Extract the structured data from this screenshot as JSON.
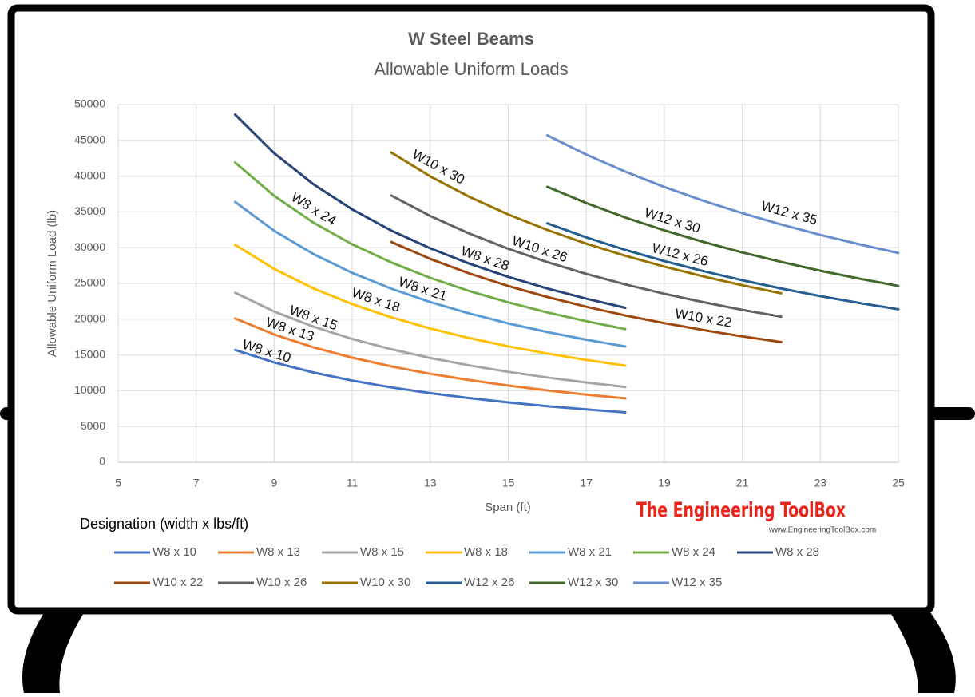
{
  "chart_data": {
    "type": "line",
    "title": "W Steel  Beams",
    "subtitle": "Allowable Uniform Loads",
    "x_label": "Span (ft)",
    "y_label": "Allowable Uniform Load (lb)",
    "legend_title": "Designation (width x lbs/ft)",
    "x": [
      8,
      9,
      10,
      11,
      12,
      13,
      14,
      15,
      16,
      17,
      18,
      19,
      20,
      21,
      22,
      23,
      24,
      25
    ],
    "series": [
      {
        "name": "W8 x 10",
        "color": "#4472c4",
        "values": [
          15700,
          13960,
          12560,
          11420,
          10470,
          9660,
          8970,
          8370,
          7850,
          7390,
          6980,
          null,
          null,
          null,
          null,
          null,
          null,
          null
        ]
      },
      {
        "name": "W8 x 13",
        "color": "#ed7d31",
        "values": [
          20100,
          17870,
          16080,
          14620,
          13400,
          12370,
          11490,
          10720,
          10050,
          9460,
          8930,
          null,
          null,
          null,
          null,
          null,
          null,
          null
        ]
      },
      {
        "name": "W8 x 15",
        "color": "#a5a5a5",
        "values": [
          23700,
          21070,
          18960,
          17240,
          15800,
          14580,
          13540,
          12640,
          11850,
          11150,
          10530,
          null,
          null,
          null,
          null,
          null,
          null,
          null
        ]
      },
      {
        "name": "W8 x 18",
        "color": "#ffc000",
        "values": [
          30400,
          27020,
          24320,
          22110,
          20270,
          18710,
          17370,
          16210,
          15200,
          14310,
          13510,
          null,
          null,
          null,
          null,
          null,
          null,
          null
        ]
      },
      {
        "name": "W8 x 21",
        "color": "#5b9bd5",
        "values": [
          36400,
          32360,
          29120,
          26470,
          24270,
          22400,
          20800,
          19410,
          18200,
          17130,
          16180,
          null,
          null,
          null,
          null,
          null,
          null,
          null
        ]
      },
      {
        "name": "W8 x 24",
        "color": "#70ad47",
        "values": [
          41900,
          37240,
          33520,
          30470,
          27930,
          25780,
          23940,
          22350,
          20950,
          19720,
          18620,
          null,
          null,
          null,
          null,
          null,
          null,
          null
        ]
      },
      {
        "name": "W8 x 28",
        "color": "#264478",
        "values": [
          48600,
          43200,
          38880,
          35350,
          32400,
          29910,
          27770,
          25920,
          24300,
          22870,
          21600,
          null,
          null,
          null,
          null,
          null,
          null,
          null
        ]
      },
      {
        "name": "W10 x 22",
        "color": "#9e480e",
        "values": [
          null,
          null,
          null,
          null,
          30800,
          28430,
          26400,
          24640,
          23100,
          21740,
          20530,
          19450,
          18480,
          17600,
          16800,
          null,
          null,
          null
        ]
      },
      {
        "name": "W10 x 26",
        "color": "#636363",
        "values": [
          null,
          null,
          null,
          null,
          37300,
          34430,
          31970,
          29840,
          27980,
          26330,
          24870,
          23560,
          22380,
          21310,
          20350,
          null,
          null,
          null
        ]
      },
      {
        "name": "W10 x 30",
        "color": "#997300",
        "values": [
          null,
          null,
          null,
          null,
          43300,
          39970,
          37110,
          34640,
          32480,
          30560,
          28870,
          27350,
          25980,
          24740,
          23620,
          null,
          null,
          null
        ]
      },
      {
        "name": "W12 x 26",
        "color": "#255e91",
        "values": [
          null,
          null,
          null,
          null,
          null,
          null,
          null,
          null,
          33400,
          31440,
          29690,
          28130,
          26720,
          25450,
          24290,
          23230,
          22270,
          21380
        ]
      },
      {
        "name": "W12 x 30",
        "color": "#43682b",
        "values": [
          null,
          null,
          null,
          null,
          null,
          null,
          null,
          null,
          38500,
          36240,
          34220,
          32420,
          30800,
          29330,
          28000,
          26780,
          25670,
          24640
        ]
      },
      {
        "name": "W12 x 35",
        "color": "#698ed0",
        "values": [
          null,
          null,
          null,
          null,
          null,
          null,
          null,
          null,
          45700,
          43010,
          40620,
          38480,
          36560,
          34820,
          33240,
          31790,
          30470,
          29250
        ]
      }
    ],
    "xlim": [
      5,
      25
    ],
    "ylim": [
      0,
      50000
    ],
    "xticks": [
      5,
      7,
      9,
      11,
      13,
      15,
      17,
      19,
      21,
      23,
      25
    ],
    "yticks": [
      0,
      5000,
      10000,
      15000,
      20000,
      25000,
      30000,
      35000,
      40000,
      45000,
      50000
    ],
    "grid": true
  },
  "brand": {
    "name": "The Engineering ToolBox",
    "url": "www.EngineeringToolBox.com"
  }
}
